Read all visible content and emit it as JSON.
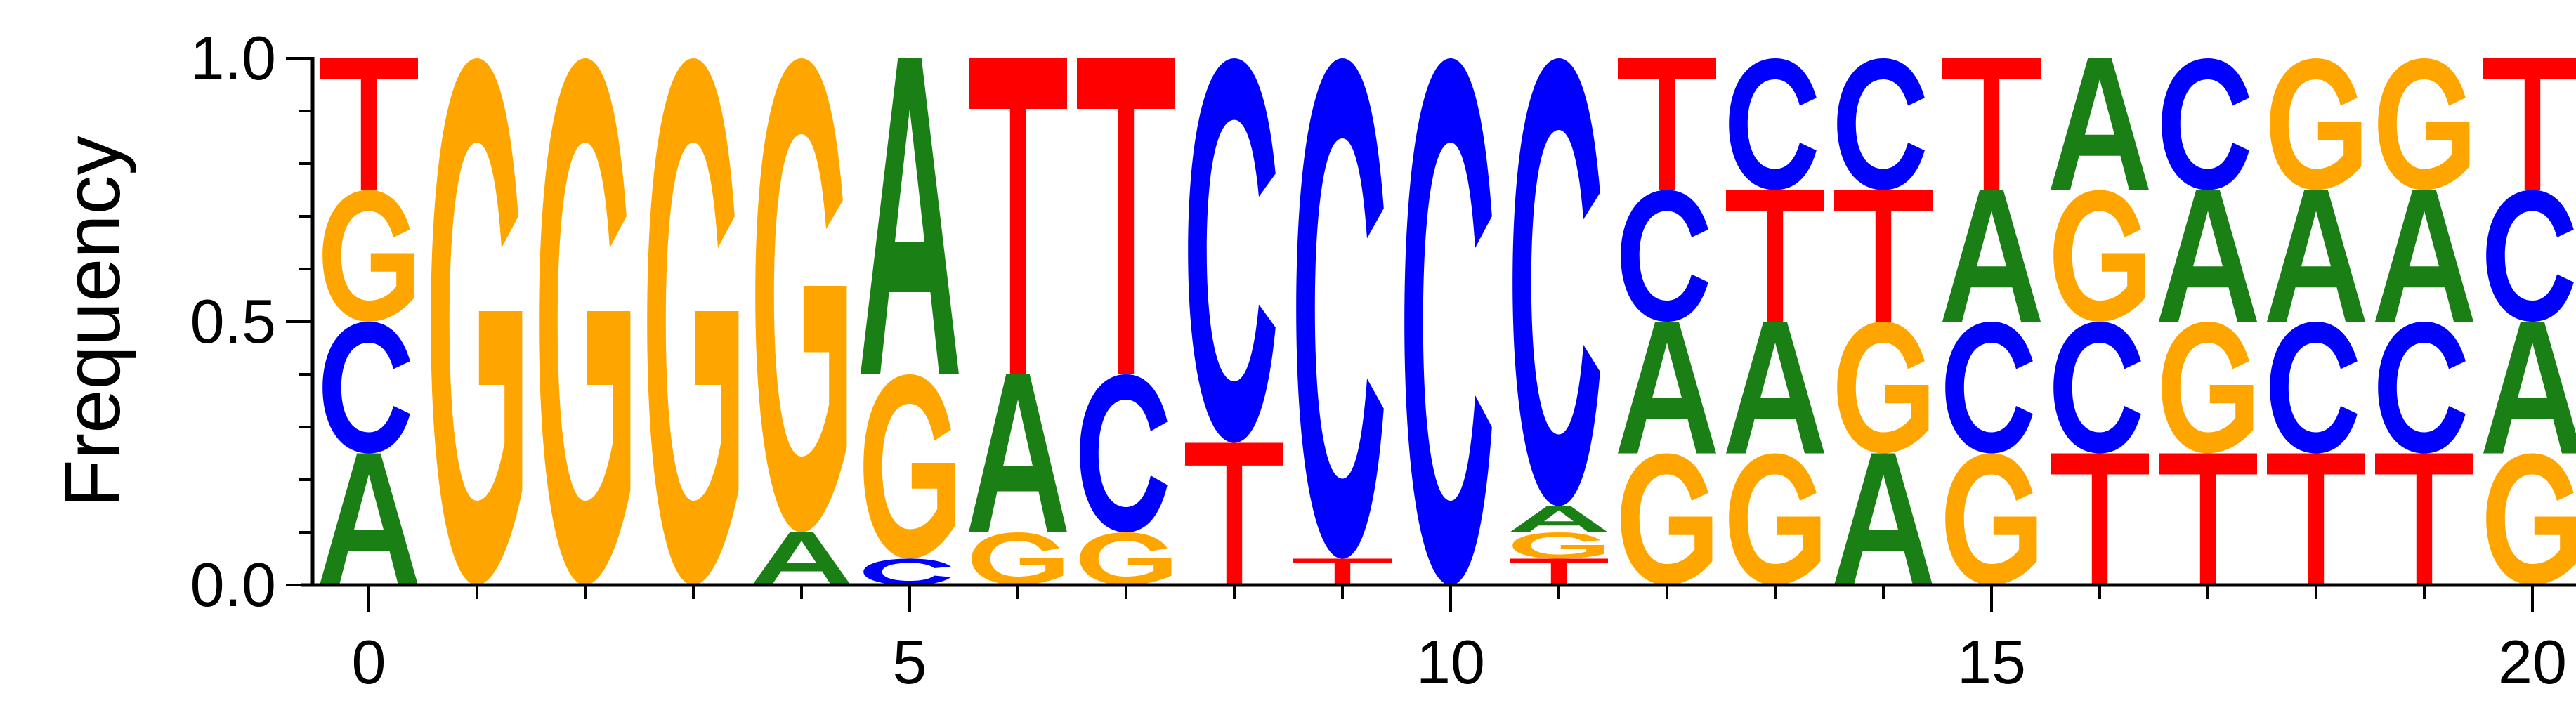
{
  "chart_data": {
    "type": "sequence-logo",
    "title": "",
    "xlabel": "",
    "ylabel": "Frequency",
    "xlim": [
      -0.5,
      20.5
    ],
    "ylim": [
      0,
      1
    ],
    "x_ticks": [
      0,
      5,
      10,
      15,
      20
    ],
    "x_tick_labels": [
      "0",
      "5",
      "10",
      "15",
      "20"
    ],
    "x_minor_ticks": [
      0,
      1,
      2,
      3,
      4,
      5,
      6,
      7,
      8,
      9,
      10,
      11,
      12,
      13,
      14,
      15,
      16,
      17,
      18,
      19,
      20
    ],
    "y_ticks": [
      0,
      0.5,
      1
    ],
    "y_tick_labels": [
      "0.0",
      "0.5",
      "1.0"
    ],
    "y_minor_ticks": [
      0,
      0.1,
      0.2,
      0.3,
      0.4,
      0.5,
      0.6,
      0.7,
      0.8,
      0.9,
      1.0
    ],
    "colors": {
      "A": "#1a8016",
      "C": "#0000ff",
      "G": "#ffa500",
      "T": "#ff0000"
    },
    "positions": [
      {
        "x": 0,
        "stack": [
          [
            "A",
            0.25
          ],
          [
            "C",
            0.25
          ],
          [
            "G",
            0.25
          ],
          [
            "T",
            0.25
          ]
        ]
      },
      {
        "x": 1,
        "stack": [
          [
            "G",
            1.0
          ]
        ]
      },
      {
        "x": 2,
        "stack": [
          [
            "G",
            1.0
          ]
        ]
      },
      {
        "x": 3,
        "stack": [
          [
            "G",
            1.0
          ]
        ]
      },
      {
        "x": 4,
        "stack": [
          [
            "A",
            0.1
          ],
          [
            "G",
            0.9
          ]
        ]
      },
      {
        "x": 5,
        "stack": [
          [
            "C",
            0.05
          ],
          [
            "G",
            0.35
          ],
          [
            "A",
            0.6
          ]
        ]
      },
      {
        "x": 6,
        "stack": [
          [
            "G",
            0.1
          ],
          [
            "A",
            0.3
          ],
          [
            "T",
            0.6
          ]
        ]
      },
      {
        "x": 7,
        "stack": [
          [
            "G",
            0.1
          ],
          [
            "C",
            0.3
          ],
          [
            "T",
            0.6
          ]
        ]
      },
      {
        "x": 8,
        "stack": [
          [
            "T",
            0.27
          ],
          [
            "C",
            0.73
          ]
        ]
      },
      {
        "x": 9,
        "stack": [
          [
            "T",
            0.05
          ],
          [
            "C",
            0.95
          ]
        ]
      },
      {
        "x": 10,
        "stack": [
          [
            "C",
            1.0
          ]
        ]
      },
      {
        "x": 11,
        "stack": [
          [
            "T",
            0.05
          ],
          [
            "G",
            0.05
          ],
          [
            "A",
            0.05
          ],
          [
            "C",
            0.85
          ]
        ]
      },
      {
        "x": 12,
        "stack": [
          [
            "G",
            0.25
          ],
          [
            "A",
            0.25
          ],
          [
            "C",
            0.25
          ],
          [
            "T",
            0.25
          ]
        ]
      },
      {
        "x": 13,
        "stack": [
          [
            "G",
            0.25
          ],
          [
            "A",
            0.25
          ],
          [
            "T",
            0.25
          ],
          [
            "C",
            0.25
          ]
        ]
      },
      {
        "x": 14,
        "stack": [
          [
            "A",
            0.25
          ],
          [
            "G",
            0.25
          ],
          [
            "T",
            0.25
          ],
          [
            "C",
            0.25
          ]
        ]
      },
      {
        "x": 15,
        "stack": [
          [
            "G",
            0.25
          ],
          [
            "C",
            0.25
          ],
          [
            "A",
            0.25
          ],
          [
            "T",
            0.25
          ]
        ]
      },
      {
        "x": 16,
        "stack": [
          [
            "T",
            0.25
          ],
          [
            "C",
            0.25
          ],
          [
            "G",
            0.25
          ],
          [
            "A",
            0.25
          ]
        ]
      },
      {
        "x": 17,
        "stack": [
          [
            "T",
            0.25
          ],
          [
            "G",
            0.25
          ],
          [
            "A",
            0.25
          ],
          [
            "C",
            0.25
          ]
        ]
      },
      {
        "x": 18,
        "stack": [
          [
            "T",
            0.25
          ],
          [
            "C",
            0.25
          ],
          [
            "A",
            0.25
          ],
          [
            "G",
            0.25
          ]
        ]
      },
      {
        "x": 19,
        "stack": [
          [
            "T",
            0.25
          ],
          [
            "C",
            0.25
          ],
          [
            "A",
            0.25
          ],
          [
            "G",
            0.25
          ]
        ]
      },
      {
        "x": 20,
        "stack": [
          [
            "G",
            0.25
          ],
          [
            "A",
            0.25
          ],
          [
            "C",
            0.25
          ],
          [
            "T",
            0.25
          ]
        ]
      }
    ]
  }
}
